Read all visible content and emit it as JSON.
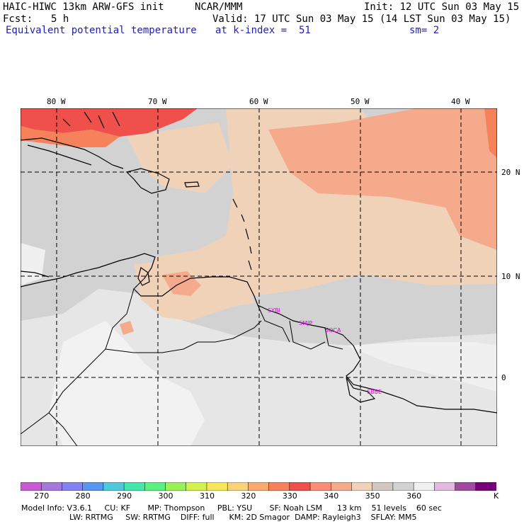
{
  "header": {
    "title": "HAIC-HIWC 13km ARW-GFS init",
    "org": "NCAR/MMM",
    "init": "Init: 12 UTC Sun 03 May 15",
    "fcst_label": "Fcst:",
    "fcst_value": "5 h",
    "valid": "Valid: 17 UTC Sun 03 May 15 (14 LST Sun 03 May 15)",
    "field": "Equivalent potential temperature",
    "level": "at k-index =  51",
    "smooth": "sm= 2"
  },
  "axes": {
    "lon_labels": [
      "80 W",
      "70 W",
      "60 W",
      "50 W",
      "40 W"
    ],
    "lat_labels": [
      "20 N",
      "10 N",
      "0"
    ]
  },
  "stations": [
    "SYBI",
    "SMJP",
    "SOCA",
    "SBBE"
  ],
  "colorbar": {
    "unit": "K",
    "tick_labels": [
      "270",
      "280",
      "290",
      "300",
      "310",
      "320",
      "330",
      "340",
      "350",
      "360"
    ],
    "colors": [
      "#c85ad2",
      "#a578dc",
      "#8282f0",
      "#5a96f0",
      "#50c8dc",
      "#46e6aa",
      "#5af082",
      "#9bf05a",
      "#d2f050",
      "#f5e65a",
      "#fad278",
      "#faaa6e",
      "#f5825a",
      "#f0504b",
      "#fa8c78",
      "#f5aa8c",
      "#f0d2b9",
      "#d2c8c3",
      "#d2d2d2",
      "#f0f0f0",
      "#e1b9e1",
      "#a04ba0",
      "#780078"
    ]
  },
  "model_info": {
    "line1": "Model Info: V3.6.1     CU: KF       MP: Thompson     PBL: YSU       SF: Noah LSM      13 km    51 levels    60 sec",
    "line2": "LW: RRTMG     SW: RRTMG    DIFF: full      KM: 2D Smagor  DAMP: Rayleigh3    SFLAY: MM5"
  }
}
